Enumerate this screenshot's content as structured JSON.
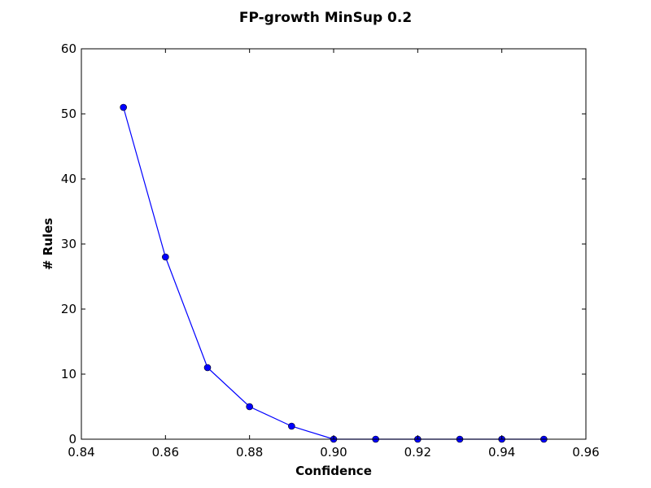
{
  "chart_data": {
    "type": "line",
    "title": "FP-growth MinSup 0.2",
    "xlabel": "Confidence",
    "ylabel": "# Rules",
    "xlim": [
      0.84,
      0.96
    ],
    "ylim": [
      0,
      60
    ],
    "x_ticks": [
      "0.84",
      "0.86",
      "0.88",
      "0.90",
      "0.92",
      "0.94",
      "0.96"
    ],
    "y_ticks": [
      "0",
      "10",
      "20",
      "30",
      "40",
      "50",
      "60"
    ],
    "grid": false,
    "series": [
      {
        "color": "#0000ff",
        "marker": "circle",
        "x": [
          0.85,
          0.86,
          0.87,
          0.88,
          0.89,
          0.9,
          0.91,
          0.92,
          0.93,
          0.94,
          0.95
        ],
        "y": [
          51,
          28,
          11,
          5,
          2,
          0,
          0,
          0,
          0,
          0,
          0
        ]
      }
    ]
  }
}
